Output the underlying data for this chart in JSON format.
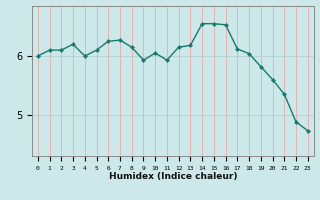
{
  "x": [
    0,
    1,
    2,
    3,
    4,
    5,
    6,
    7,
    8,
    9,
    10,
    11,
    12,
    13,
    14,
    15,
    16,
    17,
    18,
    19,
    20,
    21,
    22,
    23
  ],
  "y": [
    6.0,
    6.1,
    6.1,
    6.2,
    6.0,
    6.1,
    6.25,
    6.27,
    6.15,
    5.93,
    6.05,
    5.93,
    6.15,
    6.18,
    6.55,
    6.55,
    6.53,
    6.12,
    6.04,
    5.82,
    5.6,
    5.35,
    4.88,
    4.73
  ],
  "line_color": "#1a7a6e",
  "marker_color": "#1a7a6e",
  "bg_color": "#cce8e8",
  "vgrid_color": "#e8aaaa",
  "hgrid_color": "#b8d4d4",
  "xlabel": "Humidex (Indice chaleur)",
  "yticks": [
    5,
    6
  ],
  "ylim": [
    4.3,
    6.85
  ],
  "xlim": [
    -0.5,
    23.5
  ],
  "figsize": [
    3.2,
    2.0
  ],
  "dpi": 100
}
